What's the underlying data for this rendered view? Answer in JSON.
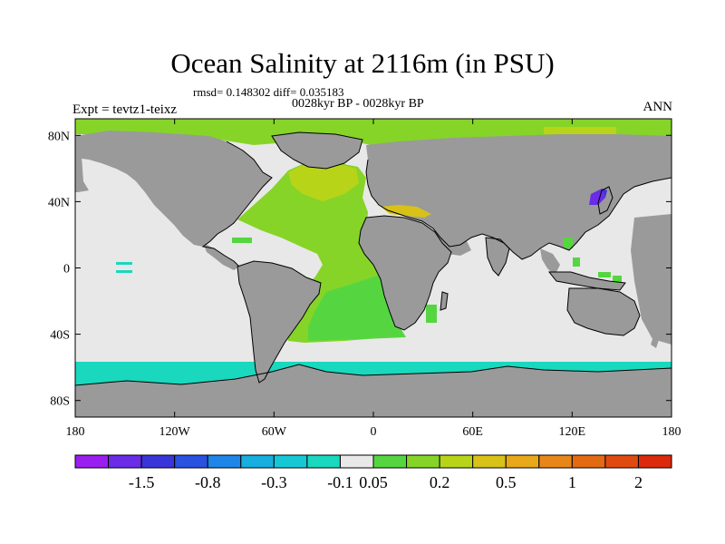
{
  "header": {
    "title": "Ocean Salinity at 2116m (in PSU)",
    "stats": "rmsd= 0.148302 diff= 0.035183",
    "period": "0028kyr BP - 0028kyr BP",
    "experiment": "Expt = tevtz1-teixz",
    "season": "ANN"
  },
  "colors": {
    "land": "#9a9a9a",
    "near_zero": "#e8e8e8",
    "coastline": "#000000"
  },
  "map": {
    "projection": "cylindrical-equidistant",
    "lon_range": [
      -180,
      180
    ],
    "lat_range": [
      -90,
      90
    ],
    "x_ticks": [
      {
        "lon": -180,
        "label": "180"
      },
      {
        "lon": -120,
        "label": "120W"
      },
      {
        "lon": -60,
        "label": "60W"
      },
      {
        "lon": 0,
        "label": "0"
      },
      {
        "lon": 60,
        "label": "60E"
      },
      {
        "lon": 120,
        "label": "120E"
      },
      {
        "lon": 180,
        "label": "180"
      }
    ],
    "y_ticks": [
      {
        "lat": 80,
        "label": "80N"
      },
      {
        "lat": 40,
        "label": "40N"
      },
      {
        "lat": 0,
        "label": "0"
      },
      {
        "lat": -40,
        "label": "40S"
      },
      {
        "lat": -80,
        "label": "80S"
      }
    ]
  },
  "colorbar": {
    "colors": [
      "#9b1ef0",
      "#6a2ce6",
      "#3a35d8",
      "#2a52e0",
      "#1e86e8",
      "#17aee0",
      "#16c8d6",
      "#19d8bd",
      "#e8e8e8",
      "#55d640",
      "#86d428",
      "#b8d418",
      "#d8c218",
      "#e8a81a",
      "#e8861a",
      "#e46a12",
      "#e04a10",
      "#dc2a0c"
    ],
    "labels": [
      {
        "after_box": 2,
        "text": "-1.5"
      },
      {
        "after_box": 4,
        "text": "-0.8"
      },
      {
        "after_box": 6,
        "text": "-0.3"
      },
      {
        "after_box": 8,
        "text": "-0.1"
      },
      {
        "after_box": 9,
        "text": "0.05"
      },
      {
        "after_box": 11,
        "text": "0.2"
      },
      {
        "after_box": 13,
        "text": "0.5"
      },
      {
        "after_box": 15,
        "text": "1"
      },
      {
        "after_box": 17,
        "text": "2"
      }
    ]
  }
}
